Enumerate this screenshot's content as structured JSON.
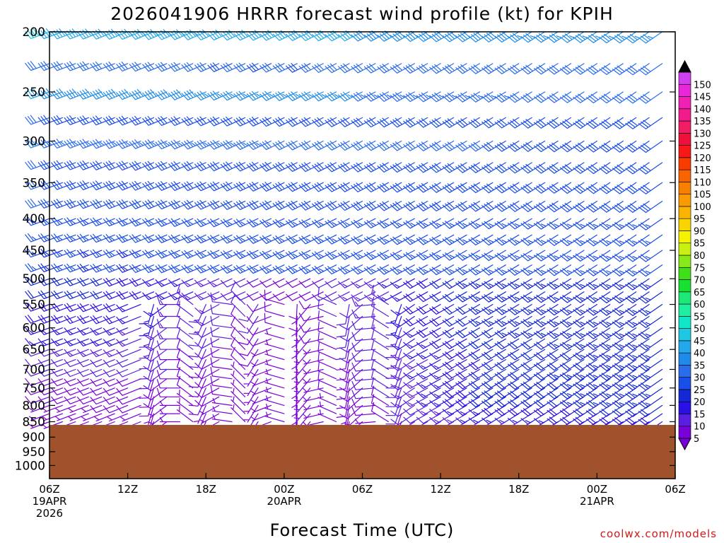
{
  "chart_data": {
    "type": "wind_barb_time_height",
    "title": "2026041906 HRRR forecast wind profile (kt) for KPIH",
    "xlabel": "Forecast Time (UTC)",
    "ylabel": "",
    "units": "kt",
    "credit": "coolwx.com/models",
    "y_axis": {
      "scale": "log-pressure",
      "ylim": [
        1050,
        200
      ],
      "ticks": [
        200,
        250,
        300,
        350,
        400,
        450,
        500,
        550,
        600,
        650,
        700,
        750,
        800,
        850,
        900,
        950,
        1000
      ]
    },
    "x_axis": {
      "start": "2026-04-19 06Z",
      "end": "2026-04-21 06Z",
      "ticks": [
        {
          "hour": 0,
          "line1": "06Z",
          "line2": "19APR",
          "line3": "2026"
        },
        {
          "hour": 6,
          "line1": "12Z",
          "line2": "",
          "line3": ""
        },
        {
          "hour": 12,
          "line1": "18Z",
          "line2": "",
          "line3": ""
        },
        {
          "hour": 18,
          "line1": "00Z",
          "line2": "20APR",
          "line3": ""
        },
        {
          "hour": 24,
          "line1": "06Z",
          "line2": "",
          "line3": ""
        },
        {
          "hour": 30,
          "line1": "12Z",
          "line2": "",
          "line3": ""
        },
        {
          "hour": 36,
          "line1": "18Z",
          "line2": "",
          "line3": ""
        },
        {
          "hour": 42,
          "line1": "00Z",
          "line2": "21APR",
          "line3": ""
        },
        {
          "hour": 48,
          "line1": "06Z",
          "line2": "",
          "line3": ""
        }
      ]
    },
    "surface_pressure_hpa": 860,
    "terrain_color": "#a0522d",
    "colorbar": {
      "levels": [
        5,
        10,
        15,
        20,
        25,
        30,
        35,
        40,
        45,
        50,
        55,
        60,
        65,
        70,
        75,
        80,
        85,
        90,
        95,
        100,
        105,
        110,
        115,
        120,
        125,
        130,
        135,
        140,
        145,
        150
      ],
      "colors": [
        "#7a00d9",
        "#5a1ee0",
        "#2a10e6",
        "#1428d6",
        "#1a4ee8",
        "#2a6cec",
        "#1e8be8",
        "#24a8ec",
        "#1ec8e0",
        "#12e6c8",
        "#1ff0a0",
        "#1ee878",
        "#18e030",
        "#40e018",
        "#88e818",
        "#c8f010",
        "#f4f400",
        "#f8d400",
        "#f8b400",
        "#f89a00",
        "#f88000",
        "#f86400",
        "#f83c00",
        "#f81818",
        "#f0103c",
        "#f01c64",
        "#f01c8c",
        "#f020b4",
        "#e828d8",
        "#d040f0"
      ],
      "extend": "both"
    },
    "wind_model": {
      "levels_hpa": [
        200,
        225,
        250,
        275,
        300,
        325,
        350,
        375,
        400,
        425,
        450,
        475,
        500,
        525,
        550,
        575,
        600,
        625,
        650,
        675,
        700,
        725,
        750,
        775,
        800,
        825,
        850
      ],
      "hours_step": 1,
      "upper_speed_kt": [
        45,
        30,
        40,
        30,
        35,
        30,
        30,
        30,
        25,
        25,
        25,
        25,
        20,
        20,
        18,
        18,
        15,
        15,
        12,
        10,
        10,
        8,
        8,
        8,
        6,
        6,
        5
      ],
      "late_speed_kt": [
        35,
        30,
        30,
        28,
        28,
        28,
        28,
        28,
        26,
        26,
        25,
        25,
        25,
        25,
        25,
        25,
        25,
        24,
        24,
        24,
        25,
        25,
        25,
        25,
        22,
        20,
        18
      ],
      "direction_deg_upper": 250,
      "direction_deg_late": 235
    }
  }
}
